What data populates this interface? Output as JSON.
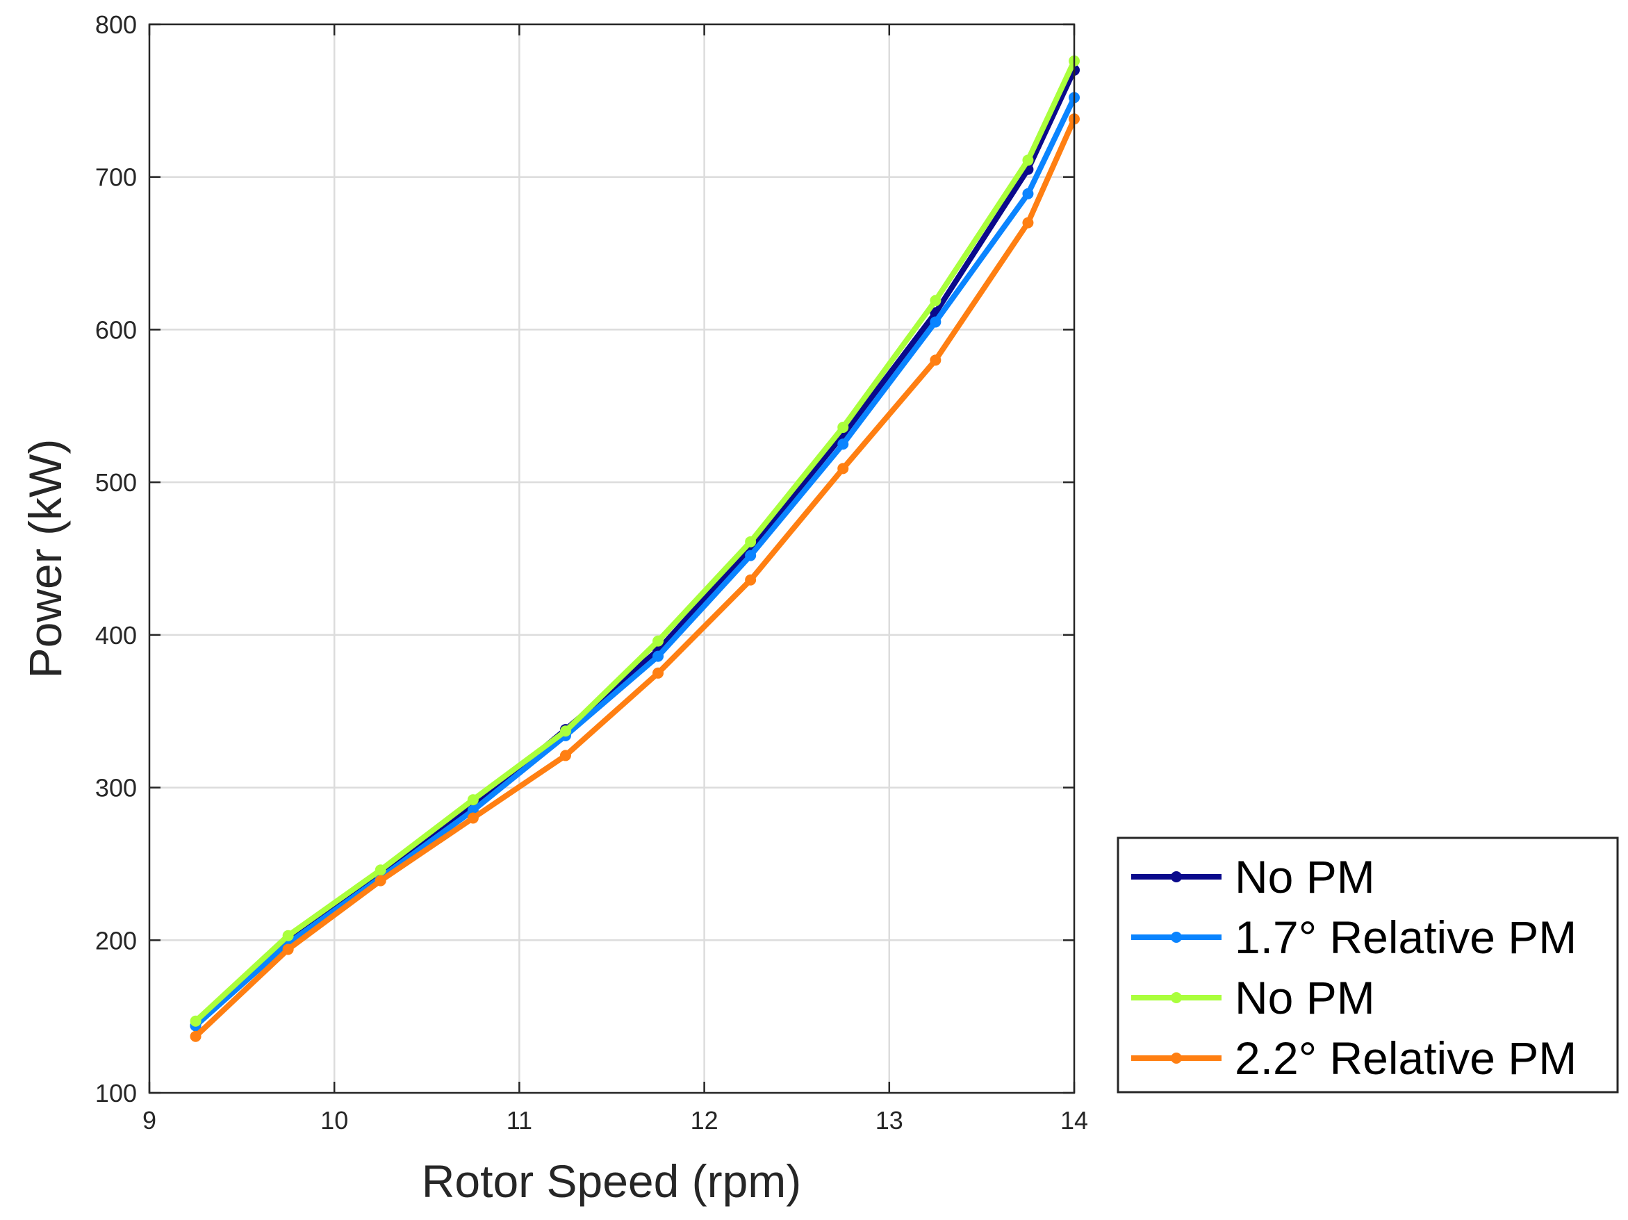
{
  "chart_data": {
    "type": "line",
    "title": "",
    "xlabel": "Rotor Speed (rpm)",
    "ylabel": "Power (kW)",
    "xlim": [
      9,
      14
    ],
    "ylim": [
      100,
      800
    ],
    "xticks": [
      "9",
      "10",
      "11",
      "12",
      "13",
      "14"
    ],
    "yticks": [
      "100",
      "200",
      "300",
      "400",
      "500",
      "600",
      "700",
      "800"
    ],
    "grid": true,
    "legend_position": "outside-bottom-right",
    "x": [
      9.25,
      9.75,
      10.25,
      10.75,
      11.25,
      11.75,
      12.25,
      12.75,
      13.25,
      13.75,
      14.0
    ],
    "series": [
      {
        "name": "No PM",
        "color": "#0a0a8c",
        "values": [
          144,
          199,
          243,
          288,
          338,
          390,
          457,
          531,
          611,
          705,
          770
        ]
      },
      {
        "name": "1.7° Relative PM",
        "color": "#0a84ff",
        "values": [
          144,
          198,
          241,
          285,
          334,
          386,
          452,
          525,
          605,
          689,
          752
        ]
      },
      {
        "name": "No PM",
        "color": "#aaff3c",
        "values": [
          147,
          203,
          246,
          292,
          337,
          396,
          461,
          536,
          619,
          711,
          776
        ]
      },
      {
        "name": "2.2° Relative PM",
        "color": "#ff7f12",
        "values": [
          137,
          194,
          239,
          280,
          321,
          375,
          436,
          509,
          580,
          670,
          738
        ]
      }
    ]
  }
}
